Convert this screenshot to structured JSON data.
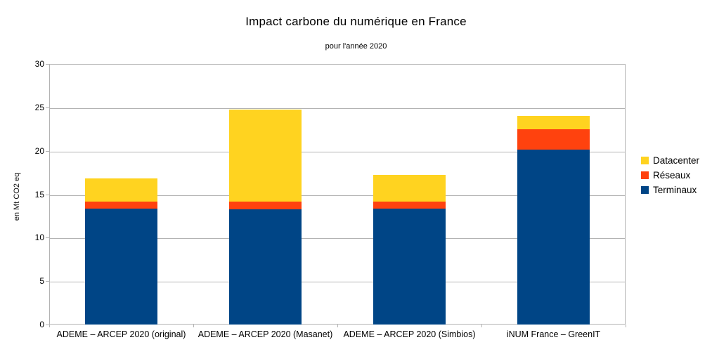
{
  "chart_data": {
    "type": "bar",
    "stacked": true,
    "title": "Impact carbone du numérique en France",
    "subtitle": "pour l'année 2020",
    "ylabel": "en Mt CO2 eq",
    "xlabel": "",
    "ylim": [
      0,
      30
    ],
    "yticks": [
      0,
      5,
      10,
      15,
      20,
      25,
      30
    ],
    "grid": "horizontal",
    "categories": [
      "ADEME – ARCEP 2020 (original)",
      "ADEME – ARCEP 2020 (Masanet)",
      "ADEME – ARCEP 2020 (Simbios)",
      "iNUM France – GreenIT"
    ],
    "series": [
      {
        "name": "Terminaux",
        "color": "#004586",
        "values": [
          13.3,
          13.3,
          13.3,
          20.1
        ]
      },
      {
        "name": "Réseaux",
        "color": "#FF420E",
        "values": [
          0.85,
          0.85,
          0.85,
          2.4
        ]
      },
      {
        "name": "Datacenter",
        "color": "#FFD320",
        "values": [
          2.7,
          10.6,
          3.05,
          1.5
        ]
      }
    ],
    "totals": [
      16.85,
      24.75,
      17.2,
      24.0
    ],
    "legend": {
      "position": "right",
      "entries": [
        "Datacenter",
        "Réseaux",
        "Terminaux"
      ]
    },
    "colors": {
      "grid": "#b3b3b3",
      "axis": "#b3b3b3",
      "text": "#000000",
      "background": "#ffffff"
    }
  }
}
